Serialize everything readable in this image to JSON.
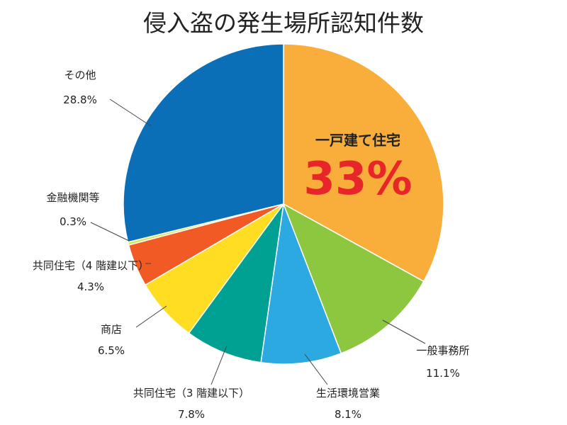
{
  "chart_data": {
    "type": "pie",
    "title": "侵入盗の発生場所認知件数",
    "unit": "%",
    "start_angle_deg": 0,
    "direction": "clockwise",
    "slices": [
      {
        "label": "一戸建て住宅",
        "value": 33,
        "value_text": "33%",
        "color": "#F9AE3B"
      },
      {
        "label": "一般事務所",
        "value": 11.1,
        "value_text": "11.1%",
        "color": "#8DC63F"
      },
      {
        "label": "生活環境営業",
        "value": 8.1,
        "value_text": "8.1%",
        "color": "#2CA9E1"
      },
      {
        "label": "共同住宅（3 階建以下）",
        "value": 7.8,
        "value_text": "7.8%",
        "color": "#00A193"
      },
      {
        "label": "商店",
        "value": 6.5,
        "value_text": "6.5%",
        "color": "#FFDD22"
      },
      {
        "label": "共同住宅（4 階建以下）",
        "value": 4.3,
        "value_text": "4.3%",
        "color": "#F15A24"
      },
      {
        "label": "金融機関等",
        "value": 0.3,
        "value_text": "0.3%",
        "color": "#D7E84A"
      },
      {
        "label": "その他",
        "value": 28.8,
        "value_text": "28.8%",
        "color": "#0B6FB8"
      }
    ],
    "highlight_color": "#E8262A"
  }
}
